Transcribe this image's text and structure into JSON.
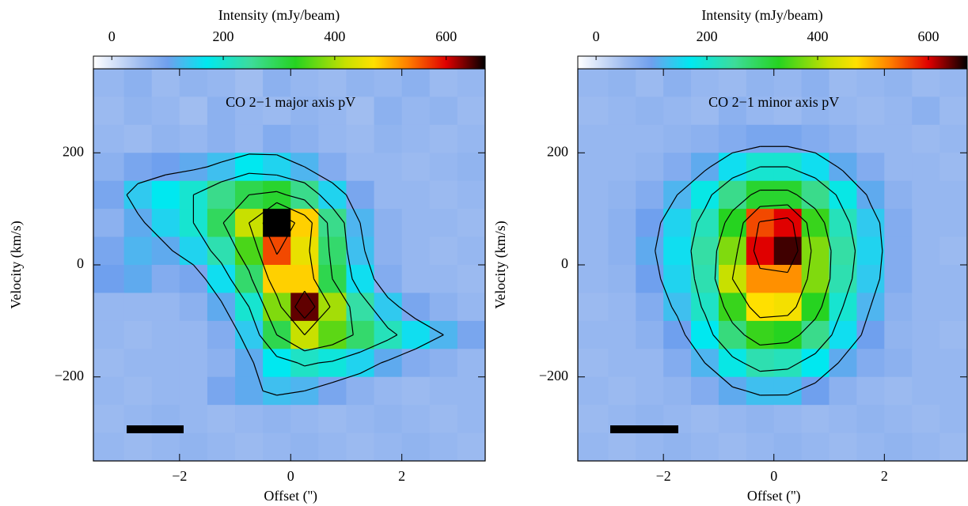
{
  "chart_data": [
    {
      "type": "heatmap",
      "title": "CO 2−1 major axis pV",
      "xlabel": "Offset ('')",
      "ylabel": "Velocity (km/s)",
      "x": [
        -3.25,
        -2.75,
        -2.25,
        -1.75,
        -1.25,
        -0.75,
        -0.25,
        0.25,
        0.75,
        1.25,
        1.75,
        2.25,
        2.75,
        3.25
      ],
      "y": [
        325,
        275,
        225,
        175,
        125,
        75,
        25,
        -25,
        -75,
        -125,
        -175,
        -225,
        -275,
        -325
      ],
      "z": [
        [
          60,
          70,
          55,
          65,
          60,
          50,
          70,
          60,
          55,
          65,
          60,
          70,
          55,
          60
        ],
        [
          55,
          65,
          60,
          50,
          70,
          60,
          55,
          65,
          60,
          50,
          70,
          60,
          65,
          55
        ],
        [
          60,
          55,
          65,
          60,
          70,
          60,
          80,
          70,
          60,
          55,
          65,
          60,
          55,
          60
        ],
        [
          70,
          90,
          100,
          110,
          130,
          170,
          150,
          120,
          80,
          60,
          60,
          55,
          60,
          65
        ],
        [
          90,
          140,
          170,
          200,
          260,
          300,
          320,
          260,
          150,
          90,
          60,
          60,
          55,
          60
        ],
        [
          70,
          110,
          150,
          200,
          290,
          420,
          680,
          480,
          260,
          120,
          70,
          60,
          60,
          55
        ],
        [
          90,
          120,
          110,
          150,
          230,
          350,
          560,
          450,
          280,
          130,
          70,
          60,
          55,
          60
        ],
        [
          100,
          110,
          80,
          90,
          160,
          280,
          480,
          480,
          300,
          160,
          80,
          60,
          60,
          55
        ],
        [
          60,
          60,
          60,
          70,
          110,
          200,
          380,
          640,
          400,
          240,
          140,
          90,
          70,
          60
        ],
        [
          60,
          55,
          60,
          60,
          80,
          140,
          300,
          420,
          360,
          280,
          220,
          160,
          120,
          90
        ],
        [
          55,
          60,
          60,
          60,
          70,
          110,
          170,
          210,
          190,
          150,
          110,
          80,
          70,
          60
        ],
        [
          60,
          55,
          60,
          60,
          90,
          110,
          130,
          120,
          90,
          70,
          60,
          55,
          60,
          60
        ],
        [
          55,
          60,
          65,
          60,
          55,
          60,
          65,
          60,
          55,
          60,
          65,
          60,
          55,
          60
        ],
        [
          60,
          55,
          60,
          65,
          60,
          55,
          60,
          65,
          60,
          55,
          60,
          65,
          60,
          55
        ]
      ],
      "xlim": [
        -3.55,
        3.5
      ],
      "ylim": [
        -350,
        350
      ],
      "xticks": [
        {
          "value": -2,
          "label": "−2"
        },
        0,
        2
      ],
      "yticks": [
        {
          "value": -200,
          "label": "−200"
        },
        0,
        200
      ],
      "colorbar": {
        "label": "Intensity (mJy/beam)",
        "lim": [
          -33,
          670
        ],
        "ticks": [
          0,
          200,
          400,
          600
        ]
      },
      "colormap": [
        [
          -33,
          "#ffffff"
        ],
        [
          50,
          "#a0bdf0"
        ],
        [
          100,
          "#6fa0ee"
        ],
        [
          170,
          "#00e8f0"
        ],
        [
          250,
          "#3ddc9a"
        ],
        [
          330,
          "#26d320"
        ],
        [
          420,
          "#c8e000"
        ],
        [
          470,
          "#ffe000"
        ],
        [
          530,
          "#ff8000"
        ],
        [
          600,
          "#e00000"
        ],
        [
          670,
          "#000000"
        ]
      ],
      "contour_levels": [
        120,
        200,
        300,
        420,
        550
      ],
      "contour_color": "#000000"
    },
    {
      "type": "heatmap",
      "title": "CO 2−1 minor axis pV",
      "xlabel": "Offset ('')",
      "ylabel": "Velocity (km/s)",
      "x": [
        -3.25,
        -2.75,
        -2.25,
        -1.75,
        -1.25,
        -0.75,
        -0.25,
        0.25,
        0.75,
        1.25,
        1.75,
        2.25,
        2.75,
        3.25
      ],
      "y": [
        325,
        275,
        225,
        175,
        125,
        75,
        25,
        -25,
        -75,
        -125,
        -175,
        -225,
        -275,
        -325
      ],
      "z": [
        [
          60,
          65,
          55,
          70,
          60,
          55,
          65,
          60,
          70,
          55,
          60,
          65,
          55,
          60
        ],
        [
          55,
          60,
          65,
          60,
          55,
          70,
          60,
          55,
          65,
          60,
          55,
          60,
          70,
          55
        ],
        [
          60,
          60,
          60,
          65,
          70,
          80,
          90,
          90,
          80,
          70,
          60,
          60,
          55,
          60
        ],
        [
          60,
          60,
          65,
          80,
          110,
          160,
          200,
          200,
          160,
          110,
          80,
          60,
          60,
          55
        ],
        [
          60,
          65,
          80,
          120,
          180,
          260,
          320,
          320,
          260,
          180,
          110,
          70,
          60,
          60
        ],
        [
          60,
          70,
          100,
          150,
          220,
          330,
          560,
          600,
          340,
          220,
          140,
          80,
          60,
          60
        ],
        [
          60,
          70,
          110,
          160,
          240,
          380,
          600,
          650,
          380,
          240,
          150,
          80,
          60,
          55
        ],
        [
          60,
          65,
          100,
          150,
          230,
          420,
          520,
          520,
          380,
          230,
          140,
          80,
          60,
          60
        ],
        [
          55,
          60,
          80,
          130,
          210,
          340,
          470,
          460,
          330,
          200,
          120,
          70,
          60,
          60
        ],
        [
          60,
          60,
          70,
          100,
          170,
          270,
          340,
          330,
          260,
          160,
          100,
          65,
          60,
          55
        ],
        [
          55,
          60,
          60,
          80,
          120,
          180,
          230,
          220,
          170,
          110,
          80,
          70,
          60,
          60
        ],
        [
          60,
          55,
          60,
          65,
          80,
          110,
          130,
          130,
          100,
          70,
          60,
          55,
          60,
          60
        ],
        [
          55,
          60,
          65,
          60,
          55,
          60,
          65,
          60,
          55,
          60,
          65,
          60,
          55,
          60
        ],
        [
          60,
          55,
          60,
          65,
          60,
          55,
          60,
          65,
          60,
          55,
          60,
          65,
          60,
          55
        ]
      ],
      "xlim": [
        -3.55,
        3.5
      ],
      "ylim": [
        -350,
        350
      ],
      "xticks": [
        {
          "value": -2,
          "label": "−2"
        },
        0,
        2
      ],
      "yticks": [
        {
          "value": -200,
          "label": "−200"
        },
        0,
        200
      ],
      "colorbar": {
        "label": "Intensity (mJy/beam)",
        "lim": [
          -33,
          670
        ],
        "ticks": [
          0,
          200,
          400,
          600
        ]
      },
      "colormap": [
        [
          -33,
          "#ffffff"
        ],
        [
          50,
          "#a0bdf0"
        ],
        [
          100,
          "#6fa0ee"
        ],
        [
          170,
          "#00e8f0"
        ],
        [
          250,
          "#3ddc9a"
        ],
        [
          330,
          "#26d320"
        ],
        [
          420,
          "#c8e000"
        ],
        [
          470,
          "#ffe000"
        ],
        [
          530,
          "#ff8000"
        ],
        [
          600,
          "#e00000"
        ],
        [
          670,
          "#000000"
        ]
      ],
      "contour_levels": [
        120,
        200,
        300,
        420,
        550
      ],
      "contour_color": "#000000"
    }
  ]
}
